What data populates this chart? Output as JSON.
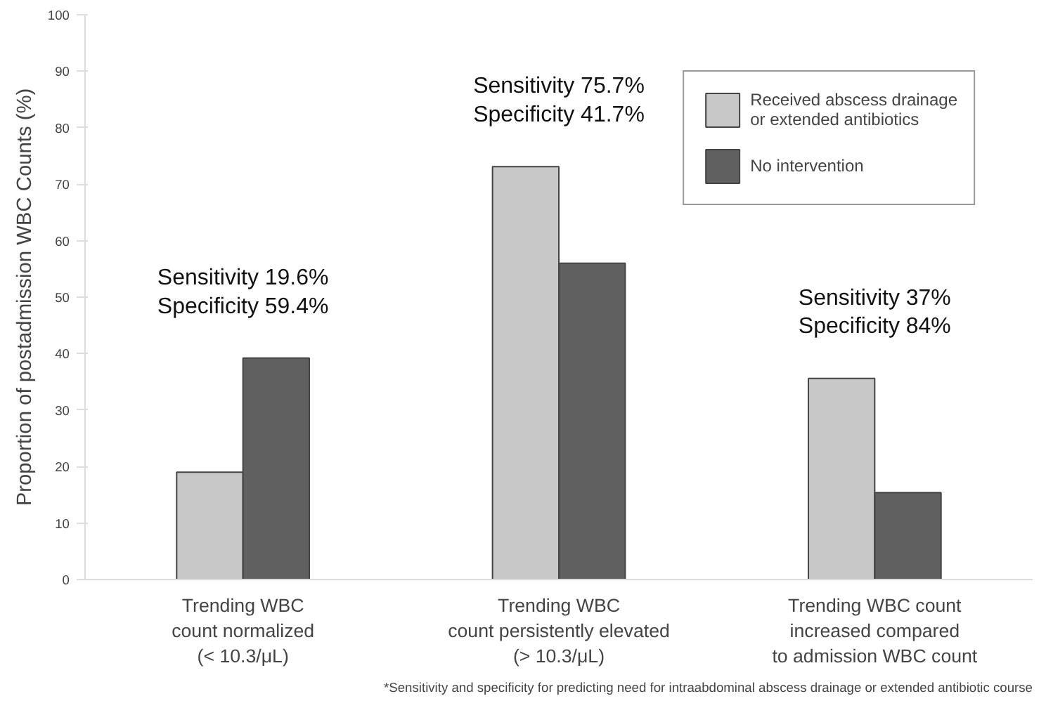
{
  "chart_data": {
    "type": "bar",
    "ylabel": "Proportion of postadmission WBC Counts (%)",
    "categories": [
      "Trending WBC\ncount normalized\n(< 10.3/μL)",
      "Trending WBC\ncount persistently elevated\n(> 10.3/μL)",
      "Trending WBC count\nincreased compared\nto admission WBC count"
    ],
    "series": [
      {
        "name": "Received abscess drainage\nor extended antibiotics",
        "color": "#c8c8c8",
        "values": [
          19,
          73.1,
          35.6
        ]
      },
      {
        "name": "No intervention",
        "color": "#606060",
        "values": [
          39.2,
          56,
          15.4
        ]
      }
    ],
    "ylim": [
      0,
      100
    ],
    "yticks": [
      0,
      10,
      20,
      30,
      40,
      50,
      60,
      70,
      80,
      90,
      100
    ],
    "grid": false,
    "legend": "top right",
    "annotations": [
      "Sensitivity 19.6%\nSpecificity 59.4%",
      "Sensitivity 75.7%\nSpecificity 41.7%",
      "Sensitivity 37%\nSpecificity 84%",
      "*Sensitivity and specificity for predicting need for intraabdominal abscess drainage or extended antibiotic course"
    ]
  }
}
